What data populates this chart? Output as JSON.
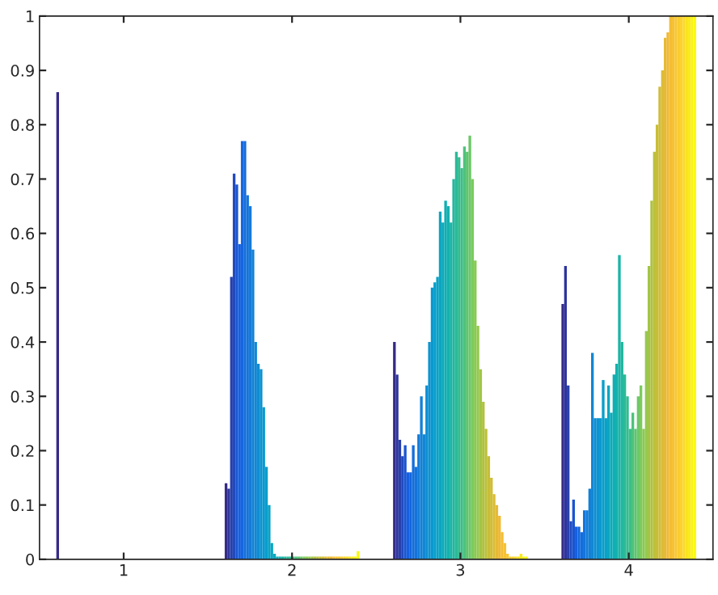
{
  "chart_data": {
    "type": "bar",
    "categories": [
      "1",
      "2",
      "3",
      "4"
    ],
    "ylim": [
      0,
      1
    ],
    "yticks": [
      0,
      0.1,
      0.2,
      0.3,
      0.4,
      0.5,
      0.6,
      0.7,
      0.8,
      0.9,
      1
    ],
    "grid": false,
    "legend": false,
    "series": [
      {
        "color": "#352a87",
        "values": [
          0.86,
          0.14,
          0.4,
          0.47
        ]
      },
      {
        "color": "#2e359d",
        "values": [
          0,
          0.13,
          0.34,
          0.54
        ]
      },
      {
        "color": "#2840ac",
        "values": [
          0,
          0.52,
          0.22,
          0.32
        ]
      },
      {
        "color": "#214abe",
        "values": [
          0,
          0.71,
          0.19,
          0.07
        ]
      },
      {
        "color": "#1a55d1",
        "values": [
          0,
          0.69,
          0.21,
          0.11
        ]
      },
      {
        "color": "#1460e1",
        "values": [
          0,
          0.58,
          0.16,
          0.06
        ]
      },
      {
        "color": "#1466df",
        "values": [
          0,
          0.77,
          0.16,
          0.06
        ]
      },
      {
        "color": "#146ddc",
        "values": [
          0,
          0.77,
          0.21,
          0.05
        ]
      },
      {
        "color": "#1474da",
        "values": [
          0,
          0.67,
          0.17,
          0.09
        ]
      },
      {
        "color": "#147bd8",
        "values": [
          0,
          0.65,
          0.23,
          0.09
        ]
      },
      {
        "color": "#1381d6",
        "values": [
          0,
          0.57,
          0.3,
          0.13
        ]
      },
      {
        "color": "#1187d4",
        "values": [
          0,
          0.4,
          0.23,
          0.38
        ]
      },
      {
        "color": "#0e8dd2",
        "values": [
          0,
          0.36,
          0.32,
          0.26
        ]
      },
      {
        "color": "#0c93d1",
        "values": [
          0,
          0.35,
          0.4,
          0.26
        ]
      },
      {
        "color": "#0999cf",
        "values": [
          0,
          0.28,
          0.5,
          0.26
        ]
      },
      {
        "color": "#089ecc",
        "values": [
          0,
          0.17,
          0.51,
          0.33
        ]
      },
      {
        "color": "#09a2c6",
        "values": [
          0,
          0.1,
          0.52,
          0.26
        ]
      },
      {
        "color": "#0ba6c0",
        "values": [
          0,
          0.03,
          0.64,
          0.32
        ]
      },
      {
        "color": "#0daabb",
        "values": [
          0,
          0.01,
          0.62,
          0.27
        ]
      },
      {
        "color": "#0fafb4",
        "values": [
          0,
          0.005,
          0.66,
          0.34
        ]
      },
      {
        "color": "#13b2ae",
        "values": [
          0,
          0.005,
          0.65,
          0.36
        ]
      },
      {
        "color": "#1bb5a7",
        "values": [
          0,
          0.005,
          0.62,
          0.56
        ]
      },
      {
        "color": "#23b79f",
        "values": [
          0,
          0.005,
          0.7,
          0.4
        ]
      },
      {
        "color": "#2bba98",
        "values": [
          0,
          0.005,
          0.75,
          0.34
        ]
      },
      {
        "color": "#33bd90",
        "values": [
          0,
          0.005,
          0.74,
          0.3
        ]
      },
      {
        "color": "#3ebf87",
        "values": [
          0,
          0.005,
          0.72,
          0.24
        ]
      },
      {
        "color": "#4ec27c",
        "values": [
          0,
          0.005,
          0.76,
          0.27
        ]
      },
      {
        "color": "#5dc572",
        "values": [
          0,
          0.005,
          0.75,
          0.24
        ]
      },
      {
        "color": "#6cc867",
        "values": [
          0,
          0.005,
          0.78,
          0.3
        ]
      },
      {
        "color": "#7ccb5d",
        "values": [
          0,
          0.005,
          0.7,
          0.32
        ]
      },
      {
        "color": "#89ca55",
        "values": [
          0,
          0.005,
          0.55,
          0.24
        ]
      },
      {
        "color": "#96c84e",
        "values": [
          0,
          0.005,
          0.43,
          0.42
        ]
      },
      {
        "color": "#a2c547",
        "values": [
          0,
          0.005,
          0.35,
          0.54
        ]
      },
      {
        "color": "#afc241",
        "values": [
          0,
          0.005,
          0.29,
          0.66
        ]
      },
      {
        "color": "#bcc03a",
        "values": [
          0,
          0.005,
          0.24,
          0.75
        ]
      },
      {
        "color": "#c7be38",
        "values": [
          0,
          0.005,
          0.19,
          0.8
        ]
      },
      {
        "color": "#d1bd37",
        "values": [
          0,
          0.005,
          0.15,
          0.87
        ]
      },
      {
        "color": "#dbbc37",
        "values": [
          0,
          0.005,
          0.12,
          0.9
        ]
      },
      {
        "color": "#e5ba36",
        "values": [
          0,
          0.005,
          0.1,
          0.96
        ]
      },
      {
        "color": "#efb935",
        "values": [
          0,
          0.005,
          0.08,
          0.97
        ]
      },
      {
        "color": "#f3bd34",
        "values": [
          0,
          0.005,
          0.05,
          1
        ]
      },
      {
        "color": "#f6c233",
        "values": [
          0,
          0.005,
          0.03,
          1
        ]
      },
      {
        "color": "#f8c731",
        "values": [
          0,
          0.005,
          0.01,
          1
        ]
      },
      {
        "color": "#facc30",
        "values": [
          0,
          0.005,
          0.005,
          1
        ]
      },
      {
        "color": "#fdd12f",
        "values": [
          0,
          0.005,
          0.005,
          1
        ]
      },
      {
        "color": "#fcd929",
        "values": [
          0,
          0.005,
          0.005,
          1
        ]
      },
      {
        "color": "#fbe222",
        "values": [
          0,
          0.005,
          0.005,
          1
        ]
      },
      {
        "color": "#fbea1b",
        "values": [
          0,
          0.005,
          0.01,
          1
        ]
      },
      {
        "color": "#faf315",
        "values": [
          0,
          0.005,
          0.005,
          1
        ]
      },
      {
        "color": "#f9fb0e",
        "values": [
          0,
          0.015,
          0.005,
          1
        ]
      }
    ]
  }
}
